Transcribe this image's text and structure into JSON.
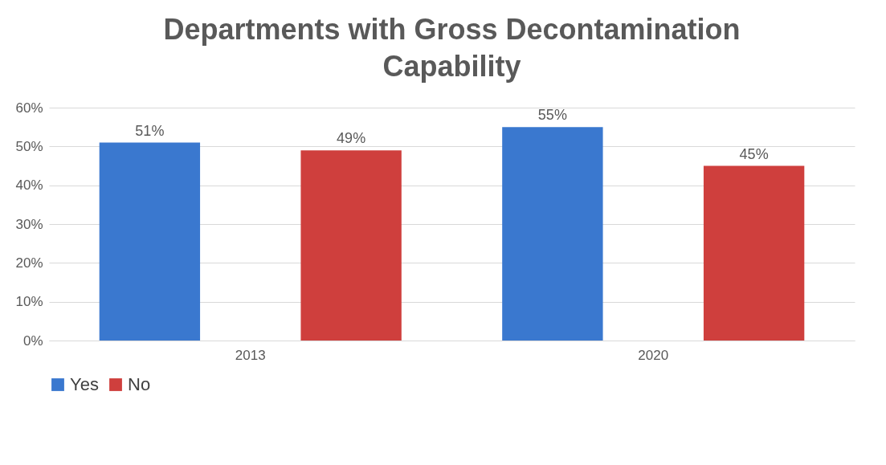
{
  "chart_data": {
    "type": "bar",
    "title": "Departments with Gross Decontamination Capability",
    "categories": [
      "2013",
      "2020"
    ],
    "series": [
      {
        "name": "Yes",
        "color": "#3a78cf",
        "values": [
          51,
          55
        ],
        "value_labels": [
          "51%",
          "55%"
        ]
      },
      {
        "name": "No",
        "color": "#cf3f3d",
        "values": [
          49,
          45
        ],
        "value_labels": [
          "49%",
          "45%"
        ]
      }
    ],
    "ylim": [
      0,
      60
    ],
    "yticks": [
      {
        "value": 0,
        "label": "0%"
      },
      {
        "value": 10,
        "label": "10%"
      },
      {
        "value": 20,
        "label": "20%"
      },
      {
        "value": 30,
        "label": "30%"
      },
      {
        "value": 40,
        "label": "40%"
      },
      {
        "value": 50,
        "label": "50%"
      },
      {
        "value": 60,
        "label": "60%"
      }
    ],
    "grid": "y",
    "legend": "bottom"
  }
}
